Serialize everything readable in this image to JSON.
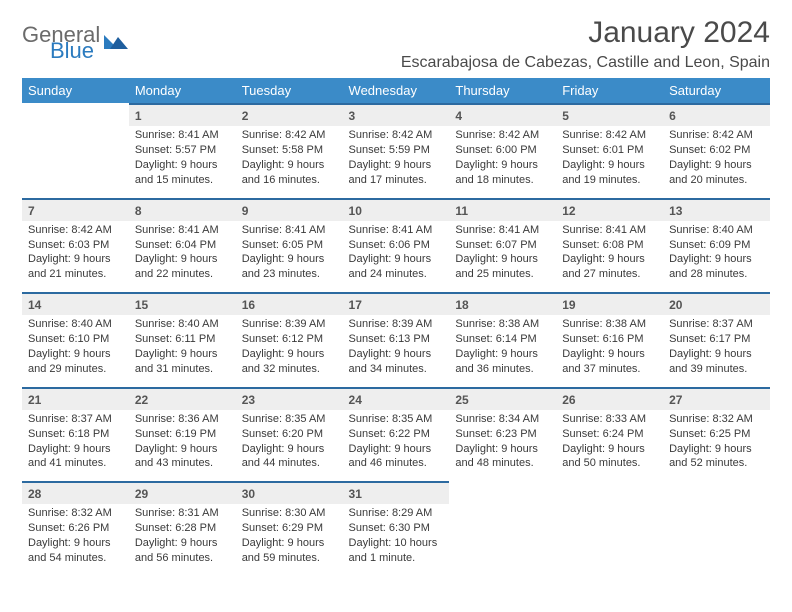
{
  "brand": {
    "word1": "General",
    "word2": "Blue",
    "color1": "#6b6b6b",
    "color2": "#2b7bbf"
  },
  "title": "January 2024",
  "location": "Escarabajosa de Cabezas, Castille and Leon, Spain",
  "colors": {
    "header_bg": "#3b8bc8",
    "header_text": "#ffffff",
    "daynum_bg": "#eeeeee",
    "daynum_border": "#2c6aa0",
    "body_text": "#3a3a3a"
  },
  "fonts": {
    "title_size": 30,
    "location_size": 16,
    "dow_size": 13,
    "daynum_size": 12,
    "cell_size": 11
  },
  "dow": [
    "Sunday",
    "Monday",
    "Tuesday",
    "Wednesday",
    "Thursday",
    "Friday",
    "Saturday"
  ],
  "weeks": [
    [
      null,
      {
        "n": "1",
        "sr": "Sunrise: 8:41 AM",
        "ss": "Sunset: 5:57 PM",
        "d1": "Daylight: 9 hours",
        "d2": "and 15 minutes."
      },
      {
        "n": "2",
        "sr": "Sunrise: 8:42 AM",
        "ss": "Sunset: 5:58 PM",
        "d1": "Daylight: 9 hours",
        "d2": "and 16 minutes."
      },
      {
        "n": "3",
        "sr": "Sunrise: 8:42 AM",
        "ss": "Sunset: 5:59 PM",
        "d1": "Daylight: 9 hours",
        "d2": "and 17 minutes."
      },
      {
        "n": "4",
        "sr": "Sunrise: 8:42 AM",
        "ss": "Sunset: 6:00 PM",
        "d1": "Daylight: 9 hours",
        "d2": "and 18 minutes."
      },
      {
        "n": "5",
        "sr": "Sunrise: 8:42 AM",
        "ss": "Sunset: 6:01 PM",
        "d1": "Daylight: 9 hours",
        "d2": "and 19 minutes."
      },
      {
        "n": "6",
        "sr": "Sunrise: 8:42 AM",
        "ss": "Sunset: 6:02 PM",
        "d1": "Daylight: 9 hours",
        "d2": "and 20 minutes."
      }
    ],
    [
      {
        "n": "7",
        "sr": "Sunrise: 8:42 AM",
        "ss": "Sunset: 6:03 PM",
        "d1": "Daylight: 9 hours",
        "d2": "and 21 minutes."
      },
      {
        "n": "8",
        "sr": "Sunrise: 8:41 AM",
        "ss": "Sunset: 6:04 PM",
        "d1": "Daylight: 9 hours",
        "d2": "and 22 minutes."
      },
      {
        "n": "9",
        "sr": "Sunrise: 8:41 AM",
        "ss": "Sunset: 6:05 PM",
        "d1": "Daylight: 9 hours",
        "d2": "and 23 minutes."
      },
      {
        "n": "10",
        "sr": "Sunrise: 8:41 AM",
        "ss": "Sunset: 6:06 PM",
        "d1": "Daylight: 9 hours",
        "d2": "and 24 minutes."
      },
      {
        "n": "11",
        "sr": "Sunrise: 8:41 AM",
        "ss": "Sunset: 6:07 PM",
        "d1": "Daylight: 9 hours",
        "d2": "and 25 minutes."
      },
      {
        "n": "12",
        "sr": "Sunrise: 8:41 AM",
        "ss": "Sunset: 6:08 PM",
        "d1": "Daylight: 9 hours",
        "d2": "and 27 minutes."
      },
      {
        "n": "13",
        "sr": "Sunrise: 8:40 AM",
        "ss": "Sunset: 6:09 PM",
        "d1": "Daylight: 9 hours",
        "d2": "and 28 minutes."
      }
    ],
    [
      {
        "n": "14",
        "sr": "Sunrise: 8:40 AM",
        "ss": "Sunset: 6:10 PM",
        "d1": "Daylight: 9 hours",
        "d2": "and 29 minutes."
      },
      {
        "n": "15",
        "sr": "Sunrise: 8:40 AM",
        "ss": "Sunset: 6:11 PM",
        "d1": "Daylight: 9 hours",
        "d2": "and 31 minutes."
      },
      {
        "n": "16",
        "sr": "Sunrise: 8:39 AM",
        "ss": "Sunset: 6:12 PM",
        "d1": "Daylight: 9 hours",
        "d2": "and 32 minutes."
      },
      {
        "n": "17",
        "sr": "Sunrise: 8:39 AM",
        "ss": "Sunset: 6:13 PM",
        "d1": "Daylight: 9 hours",
        "d2": "and 34 minutes."
      },
      {
        "n": "18",
        "sr": "Sunrise: 8:38 AM",
        "ss": "Sunset: 6:14 PM",
        "d1": "Daylight: 9 hours",
        "d2": "and 36 minutes."
      },
      {
        "n": "19",
        "sr": "Sunrise: 8:38 AM",
        "ss": "Sunset: 6:16 PM",
        "d1": "Daylight: 9 hours",
        "d2": "and 37 minutes."
      },
      {
        "n": "20",
        "sr": "Sunrise: 8:37 AM",
        "ss": "Sunset: 6:17 PM",
        "d1": "Daylight: 9 hours",
        "d2": "and 39 minutes."
      }
    ],
    [
      {
        "n": "21",
        "sr": "Sunrise: 8:37 AM",
        "ss": "Sunset: 6:18 PM",
        "d1": "Daylight: 9 hours",
        "d2": "and 41 minutes."
      },
      {
        "n": "22",
        "sr": "Sunrise: 8:36 AM",
        "ss": "Sunset: 6:19 PM",
        "d1": "Daylight: 9 hours",
        "d2": "and 43 minutes."
      },
      {
        "n": "23",
        "sr": "Sunrise: 8:35 AM",
        "ss": "Sunset: 6:20 PM",
        "d1": "Daylight: 9 hours",
        "d2": "and 44 minutes."
      },
      {
        "n": "24",
        "sr": "Sunrise: 8:35 AM",
        "ss": "Sunset: 6:22 PM",
        "d1": "Daylight: 9 hours",
        "d2": "and 46 minutes."
      },
      {
        "n": "25",
        "sr": "Sunrise: 8:34 AM",
        "ss": "Sunset: 6:23 PM",
        "d1": "Daylight: 9 hours",
        "d2": "and 48 minutes."
      },
      {
        "n": "26",
        "sr": "Sunrise: 8:33 AM",
        "ss": "Sunset: 6:24 PM",
        "d1": "Daylight: 9 hours",
        "d2": "and 50 minutes."
      },
      {
        "n": "27",
        "sr": "Sunrise: 8:32 AM",
        "ss": "Sunset: 6:25 PM",
        "d1": "Daylight: 9 hours",
        "d2": "and 52 minutes."
      }
    ],
    [
      {
        "n": "28",
        "sr": "Sunrise: 8:32 AM",
        "ss": "Sunset: 6:26 PM",
        "d1": "Daylight: 9 hours",
        "d2": "and 54 minutes."
      },
      {
        "n": "29",
        "sr": "Sunrise: 8:31 AM",
        "ss": "Sunset: 6:28 PM",
        "d1": "Daylight: 9 hours",
        "d2": "and 56 minutes."
      },
      {
        "n": "30",
        "sr": "Sunrise: 8:30 AM",
        "ss": "Sunset: 6:29 PM",
        "d1": "Daylight: 9 hours",
        "d2": "and 59 minutes."
      },
      {
        "n": "31",
        "sr": "Sunrise: 8:29 AM",
        "ss": "Sunset: 6:30 PM",
        "d1": "Daylight: 10 hours",
        "d2": "and 1 minute."
      },
      null,
      null,
      null
    ]
  ]
}
